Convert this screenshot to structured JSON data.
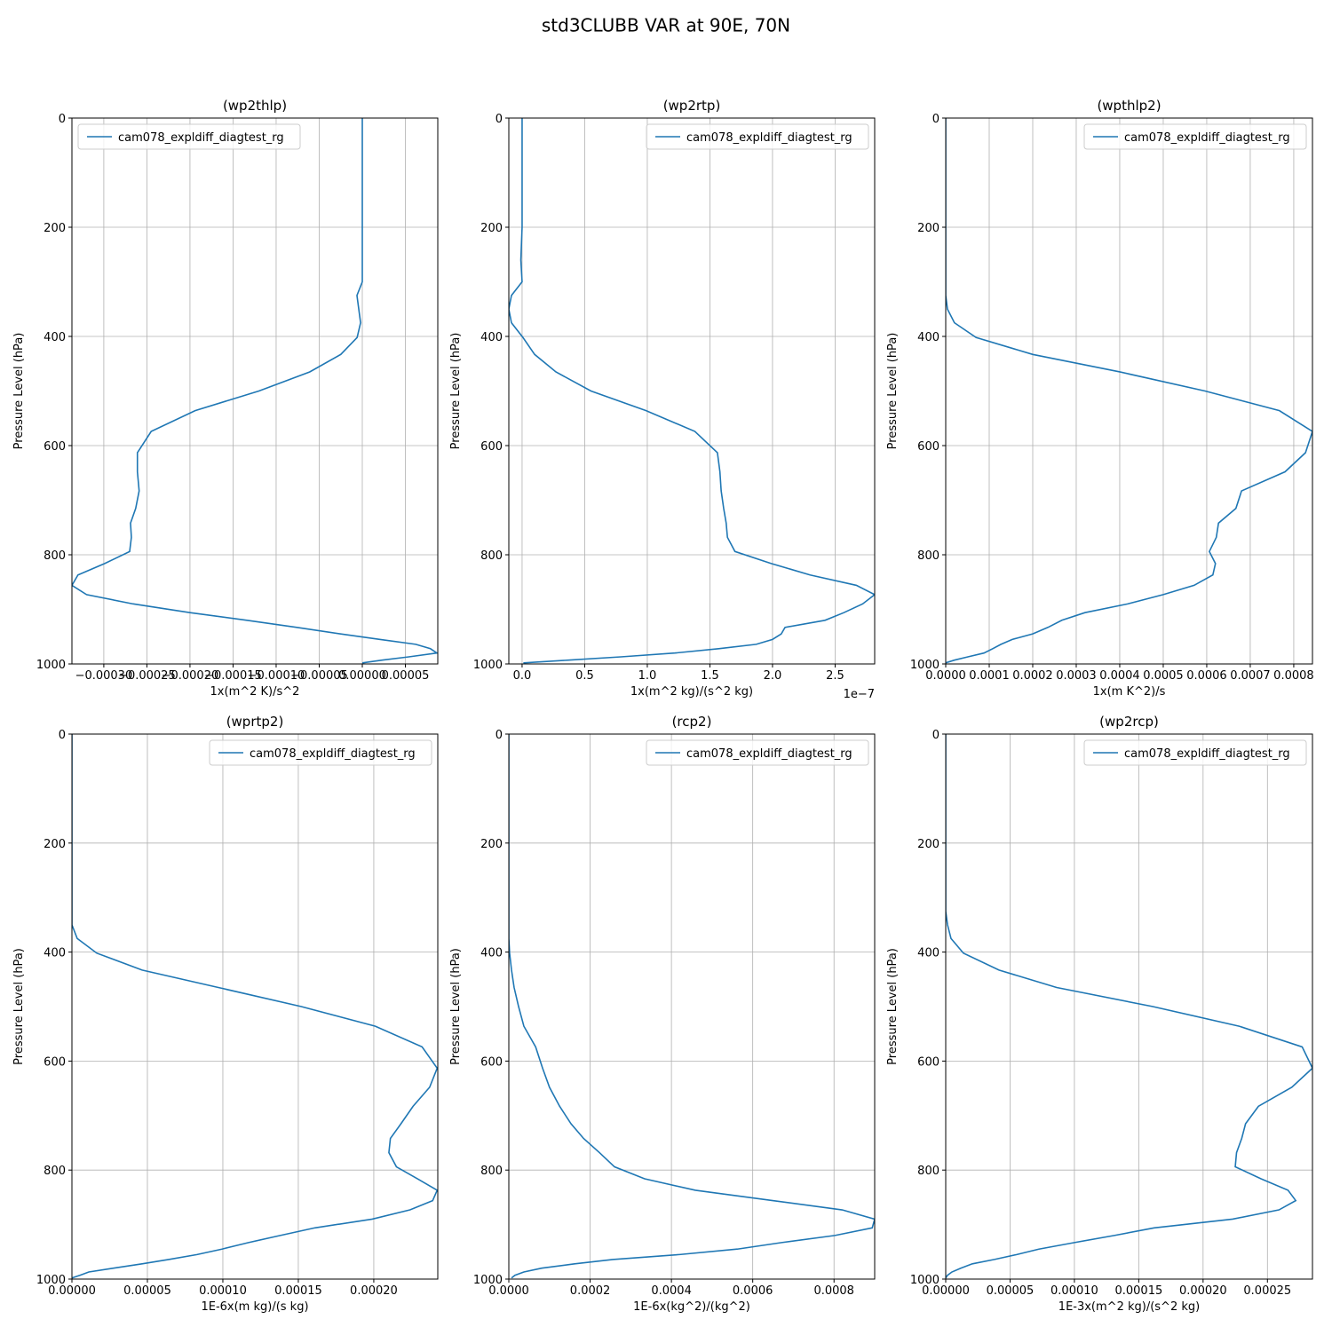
{
  "title": "std3CLUBB VAR at 90E, 70N",
  "chart_data": [
    {
      "type": "line",
      "title": "(wp2thlp)",
      "xlabel": "1x(m^2 K)/s^2",
      "ylabel": "Pressure Level (hPa)",
      "y": [
        0,
        100,
        200,
        260,
        300,
        325,
        350,
        375,
        402,
        433,
        465,
        500,
        536,
        574,
        613,
        648,
        683,
        715,
        742,
        768,
        794,
        816,
        837,
        856,
        873,
        890,
        906,
        920,
        933,
        945,
        955,
        964,
        972,
        980,
        987,
        993,
        998
      ],
      "series": [
        {
          "name": "cam078_expldiff_diagtest_rg",
          "color": "#1f77b4",
          "values": [
            0,
            0,
            0,
            0,
            0,
            -6.2e-06,
            -4.1e-06,
            -2e-06,
            -6e-06,
            -2.5e-05,
            -6.1e-05,
            -0.00012,
            -0.000194,
            -0.000245,
            -0.000261,
            -0.000261,
            -0.000259,
            -0.000263,
            -0.000269,
            -0.000268,
            -0.00027,
            -0.000299,
            -0.00033,
            -0.000337,
            -0.00032,
            -0.000266,
            -0.0002,
            -0.000134,
            -7.6e-05,
            -2.5e-05,
            2e-05,
            6.2e-05,
            7.9e-05,
            8.66e-05,
            5.4e-05,
            2.3e-05,
            0
          ]
        }
      ],
      "xlim": [
        -0.000337,
        8.76e-05
      ],
      "ylim": [
        1000,
        0
      ],
      "xticks": [
        {
          "value": -0.0003,
          "label": "−0.00030"
        },
        {
          "value": -0.00025,
          "label": "−0.00025"
        },
        {
          "value": -0.0002,
          "label": "−0.00020"
        },
        {
          "value": -0.00015,
          "label": "−0.00015"
        },
        {
          "value": -0.0001,
          "label": "−0.00010"
        },
        {
          "value": -5e-05,
          "label": "−0.00005"
        },
        {
          "value": 0,
          "label": "0.00000"
        },
        {
          "value": 5e-05,
          "label": "0.00005"
        }
      ],
      "yticks": [
        0,
        200,
        400,
        600,
        800,
        1000
      ],
      "grid": true,
      "legend": "upper left"
    },
    {
      "type": "line",
      "title": "(wp2rtp)",
      "xlabel": "1x(m^2 kg)/(s^2 kg)",
      "ylabel": "Pressure Level (hPa)",
      "x_offset_label": "1e−7",
      "y": [
        0,
        100,
        200,
        260,
        300,
        325,
        350,
        375,
        402,
        433,
        465,
        500,
        536,
        574,
        613,
        648,
        683,
        715,
        742,
        768,
        794,
        816,
        837,
        856,
        873,
        890,
        906,
        920,
        933,
        945,
        955,
        964,
        972,
        980,
        987,
        993,
        998
      ],
      "series": [
        {
          "name": "cam078_expldiff_diagtest_rg",
          "color": "#1f77b4",
          "values": [
            0,
            0,
            0,
            -1e-09,
            0,
            -8.5e-09,
            -1.06e-08,
            -8.5e-09,
            7e-10,
            1e-08,
            2.7e-08,
            5.5e-08,
            9.9e-08,
            1.38e-07,
            1.56e-07,
            1.58e-07,
            1.59e-07,
            1.61e-07,
            1.63e-07,
            1.64e-07,
            1.7e-07,
            1.99e-07,
            2.3e-07,
            2.67e-07,
            2.816e-07,
            2.72e-07,
            2.57e-07,
            2.42e-07,
            2.1e-07,
            2.07e-07,
            2e-07,
            1.87e-07,
            1.57e-07,
            1.22e-07,
            7.9e-08,
            3.7e-08,
            1e-09
          ]
        }
      ],
      "xlim": [
        -1.06e-08,
        2.816e-07
      ],
      "ylim": [
        1000,
        0
      ],
      "xticks": [
        {
          "value": 0,
          "label": "0.0"
        },
        {
          "value": 5e-08,
          "label": "0.5"
        },
        {
          "value": 1e-07,
          "label": "1.0"
        },
        {
          "value": 1.5e-07,
          "label": "1.5"
        },
        {
          "value": 2e-07,
          "label": "2.0"
        },
        {
          "value": 2.5e-07,
          "label": "2.5"
        }
      ],
      "yticks": [
        0,
        200,
        400,
        600,
        800,
        1000
      ],
      "grid": true,
      "legend": "upper right"
    },
    {
      "type": "line",
      "title": "(wpthlp2)",
      "xlabel": "1x(m K^2)/s",
      "ylabel": "Pressure Level (hPa)",
      "y": [
        0,
        100,
        200,
        260,
        300,
        325,
        350,
        375,
        402,
        433,
        465,
        500,
        536,
        574,
        613,
        648,
        683,
        715,
        742,
        768,
        794,
        816,
        837,
        856,
        873,
        890,
        906,
        920,
        933,
        945,
        955,
        964,
        972,
        980,
        987,
        993,
        998
      ],
      "series": [
        {
          "name": "cam078_expldiff_diagtest_rg",
          "color": "#1f77b4",
          "values": [
            0,
            0,
            0,
            0,
            0,
            0,
            4e-06,
            2e-05,
            7e-05,
            0.0002,
            0.0004,
            0.000596,
            0.000767,
            0.000843,
            0.000827,
            0.00078,
            0.00068,
            0.000667,
            0.000627,
            0.000622,
            0.000606,
            0.00062,
            0.000614,
            0.000571,
            0.0005,
            0.000418,
            0.00032,
            0.000267,
            0.000235,
            0.0002,
            0.000153,
            0.000127,
            0.000108,
            8.8e-05,
            5.1e-05,
            2e-05,
            0
          ]
        }
      ],
      "xlim": [
        0,
        0.000843
      ],
      "ylim": [
        1000,
        0
      ],
      "xticks": [
        {
          "value": 0,
          "label": "0.0000"
        },
        {
          "value": 0.0001,
          "label": "0.0001"
        },
        {
          "value": 0.0002,
          "label": "0.0002"
        },
        {
          "value": 0.0003,
          "label": "0.0003"
        },
        {
          "value": 0.0004,
          "label": "0.0004"
        },
        {
          "value": 0.0005,
          "label": "0.0005"
        },
        {
          "value": 0.0006,
          "label": "0.0006"
        },
        {
          "value": 0.0007,
          "label": "0.0007"
        },
        {
          "value": 0.0008,
          "label": "0.0008"
        }
      ],
      "yticks": [
        0,
        200,
        400,
        600,
        800,
        1000
      ],
      "grid": true,
      "legend": "upper right"
    },
    {
      "type": "line",
      "title": "(wprtp2)",
      "xlabel": "1E-6x(m kg)/(s kg)",
      "ylabel": "Pressure Level (hPa)",
      "y": [
        0,
        100,
        200,
        260,
        300,
        325,
        350,
        375,
        402,
        433,
        465,
        500,
        536,
        574,
        613,
        648,
        683,
        715,
        742,
        768,
        794,
        816,
        837,
        856,
        873,
        890,
        906,
        920,
        933,
        945,
        955,
        964,
        972,
        980,
        987,
        993,
        998
      ],
      "series": [
        {
          "name": "cam078_expldiff_diagtest_rg",
          "color": "#1f77b4",
          "values": [
            0,
            0,
            0,
            0,
            0,
            0,
            0,
            3.5e-06,
            1.65e-05,
            4.65e-05,
            9.7e-05,
            0.000152,
            0.000201,
            0.000232,
            0.000242,
            0.000237,
            0.000226,
            0.000218,
            0.000211,
            0.00021,
            0.000215,
            0.000229,
            0.000242,
            0.000239,
            0.000224,
            0.000199,
            0.000161,
            0.000138,
            0.000117,
            9.94e-05,
            8.29e-05,
            6.41e-05,
            4.65e-05,
            2.76e-05,
            1.12e-05,
            5.3e-06,
            0
          ]
        }
      ],
      "xlim": [
        0,
        0.0002424
      ],
      "ylim": [
        1000,
        0
      ],
      "xticks": [
        {
          "value": 0,
          "label": "0.00000"
        },
        {
          "value": 5e-05,
          "label": "0.00005"
        },
        {
          "value": 0.0001,
          "label": "0.00010"
        },
        {
          "value": 0.00015,
          "label": "0.00015"
        },
        {
          "value": 0.0002,
          "label": "0.00020"
        }
      ],
      "yticks": [
        0,
        200,
        400,
        600,
        800,
        1000
      ],
      "grid": true,
      "legend": "upper right"
    },
    {
      "type": "line",
      "title": "(rcp2)",
      "xlabel": "1E-6x(kg^2)/(kg^2)",
      "ylabel": "Pressure Level (hPa)",
      "y": [
        0,
        100,
        200,
        260,
        300,
        325,
        350,
        375,
        402,
        433,
        465,
        500,
        536,
        574,
        613,
        648,
        683,
        715,
        742,
        768,
        794,
        816,
        837,
        856,
        873,
        890,
        906,
        920,
        933,
        945,
        955,
        964,
        972,
        980,
        987,
        993,
        998
      ],
      "series": [
        {
          "name": "cam078_expldiff_diagtest_rg",
          "color": "#1f77b4",
          "values": [
            0,
            0,
            0,
            0,
            0,
            0,
            0,
            0,
            2e-06,
            6.6e-06,
            1.3e-05,
            2.4e-05,
            3.7e-05,
            6.6e-05,
            8.3e-05,
            0.0001,
            0.000125,
            0.000153,
            0.000184,
            0.000223,
            0.00026,
            0.000334,
            0.000459,
            0.000649,
            0.00082,
            0.0009,
            0.000894,
            0.000802,
            0.000671,
            0.000562,
            0.00042,
            0.000256,
            0.000162,
            8.1e-05,
            3.7e-05,
            1.5e-05,
            6.6e-06
          ]
        }
      ],
      "xlim": [
        0,
        0.0009
      ],
      "ylim": [
        1000,
        0
      ],
      "xticks": [
        {
          "value": 0,
          "label": "0.0000"
        },
        {
          "value": 0.0002,
          "label": "0.0002"
        },
        {
          "value": 0.0004,
          "label": "0.0004"
        },
        {
          "value": 0.0006,
          "label": "0.0006"
        },
        {
          "value": 0.0008,
          "label": "0.0008"
        }
      ],
      "yticks": [
        0,
        200,
        400,
        600,
        800,
        1000
      ],
      "grid": true,
      "legend": "upper right"
    },
    {
      "type": "line",
      "title": "(wp2rcp)",
      "xlabel": "1E-3x(m^2 kg)/(s^2 kg)",
      "ylabel": "Pressure Level (hPa)",
      "y": [
        0,
        100,
        200,
        260,
        300,
        325,
        350,
        375,
        402,
        433,
        465,
        500,
        536,
        574,
        613,
        648,
        683,
        715,
        742,
        768,
        794,
        816,
        837,
        856,
        873,
        890,
        906,
        920,
        933,
        945,
        955,
        964,
        972,
        980,
        987,
        993,
        998
      ],
      "series": [
        {
          "name": "cam078_expldiff_diagtest_rg",
          "color": "#1f77b4",
          "values": [
            0,
            0,
            0,
            0,
            0,
            0,
            1.4e-06,
            4.1e-06,
            1.38e-05,
            4.14e-05,
            8.62e-05,
            0.000161,
            0.000228,
            0.000277,
            0.000285,
            0.000269,
            0.000243,
            0.000233,
            0.00023,
            0.000226,
            0.000225,
            0.000245,
            0.000266,
            0.000272,
            0.000259,
            0.000223,
            0.000162,
            0.000131,
            0.0001,
            7.24e-05,
            5.52e-05,
            3.79e-05,
            2.07e-05,
            1.17e-05,
            4.8e-06,
            1.4e-06,
            0
          ]
        }
      ],
      "xlim": [
        0,
        0.000285
      ],
      "ylim": [
        1000,
        0
      ],
      "xticks": [
        {
          "value": 0,
          "label": "0.00000"
        },
        {
          "value": 5e-05,
          "label": "0.00005"
        },
        {
          "value": 0.0001,
          "label": "0.00010"
        },
        {
          "value": 0.00015,
          "label": "0.00015"
        },
        {
          "value": 0.0002,
          "label": "0.00020"
        },
        {
          "value": 0.00025,
          "label": "0.00025"
        }
      ],
      "yticks": [
        0,
        200,
        400,
        600,
        800,
        1000
      ],
      "grid": true,
      "legend": "upper right"
    }
  ]
}
